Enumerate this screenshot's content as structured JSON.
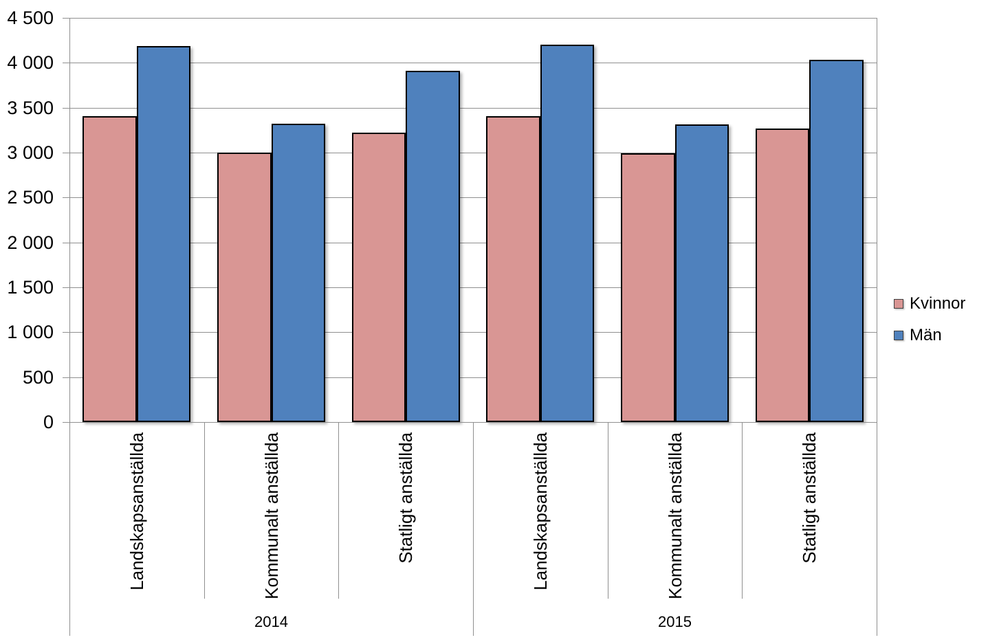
{
  "chart_data": {
    "type": "bar",
    "title": "",
    "grid": true,
    "legend_position": "right",
    "ylim": [
      0,
      4500
    ],
    "ytick_step": 500,
    "ytick_labels": [
      "0",
      "500",
      "1 000",
      "1 500",
      "2 000",
      "2 500",
      "3 000",
      "3 500",
      "4 000",
      "4 500"
    ],
    "groups": [
      {
        "label": "2014",
        "categories": [
          "Landskapsanställda",
          "Kommunalt anställda",
          "Statligt anställda"
        ]
      },
      {
        "label": "2015",
        "categories": [
          "Landskapsanställda",
          "Kommunalt anställda",
          "Statligt anställda"
        ]
      }
    ],
    "categories": [
      "Landskapsanställda",
      "Kommunalt anställda",
      "Statligt anställda",
      "Landskapsanställda",
      "Kommunalt anställda",
      "Statligt anställda"
    ],
    "series": [
      {
        "name": "Kvinnor",
        "color": "#D99694",
        "values": [
          3405,
          3000,
          3220,
          3405,
          2995,
          3270
        ]
      },
      {
        "name": "Män",
        "color": "#4F81BD",
        "values": [
          4190,
          3325,
          3910,
          4200,
          3315,
          4030
        ]
      }
    ],
    "colors": {
      "kvinnor": "#D99694",
      "man": "#4F81BD",
      "line": "#8f8f8f",
      "bar_border": "#000000",
      "text": "#000000",
      "background": "#ffffff"
    }
  }
}
